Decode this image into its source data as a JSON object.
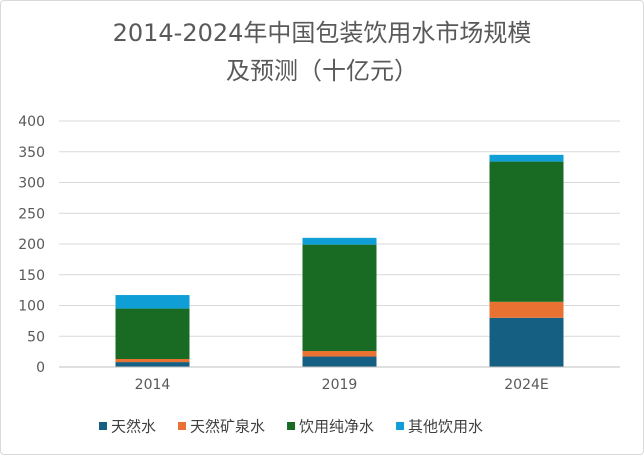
{
  "chart_data": {
    "type": "bar",
    "stacked": true,
    "title_lines": [
      "2014-2024年中国包装饮用水市场规模",
      "及预测（十亿元）"
    ],
    "categories": [
      "2014",
      "2019",
      "2024E"
    ],
    "series": [
      {
        "name": "天然水",
        "color": "#156082",
        "values": [
          8,
          17,
          80
        ]
      },
      {
        "name": "天然矿泉水",
        "color": "#E97132",
        "values": [
          5,
          9,
          26
        ]
      },
      {
        "name": "饮用纯净水",
        "color": "#196B24",
        "values": [
          82,
          173,
          228
        ]
      },
      {
        "name": "其他饮用水",
        "color": "#0F9ED5",
        "values": [
          22,
          11,
          11
        ]
      }
    ],
    "ylim": [
      0,
      400
    ],
    "yticks": [
      0,
      50,
      100,
      150,
      200,
      250,
      300,
      350,
      400
    ],
    "grid": true,
    "legend": "bottom"
  }
}
